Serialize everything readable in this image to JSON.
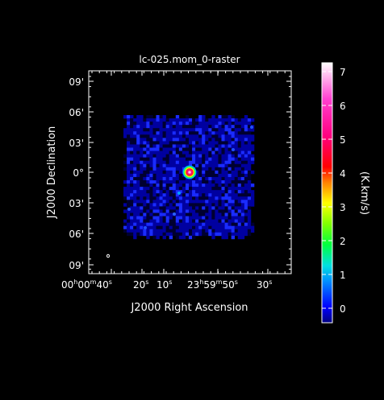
{
  "plot": {
    "title": "lc-025.mom_0-raster",
    "xlabel": "J2000 Right Ascension",
    "ylabel": "J2000 Declination",
    "colorbar_label": "(K.km/s)",
    "background_color": "#000000",
    "frame_color": "#ffffff"
  },
  "axes": {
    "y_ticks": [
      "09'",
      "06'",
      "03'",
      "0°",
      "03'",
      "06'",
      "09'"
    ],
    "x_ticks": [
      {
        "main": "00",
        "sup1": "h",
        "mid": "00",
        "sup2": "m",
        "tail": "40",
        "sup3": "s"
      },
      {
        "main": "20",
        "sup1": "s"
      },
      {
        "main": "10",
        "sup1": "s"
      },
      {
        "main": "23",
        "sup1": "h",
        "mid": "59",
        "sup2": "m",
        "tail": "50",
        "sup3": "s"
      },
      {
        "main": "30",
        "sup1": "s"
      }
    ]
  },
  "colorbar": {
    "ticks": [
      "0",
      "1",
      "2",
      "3",
      "4",
      "5",
      "6",
      "7"
    ],
    "min": -0.4,
    "max": 7.2,
    "stops": [
      "#000080",
      "#0000ff",
      "#0090ff",
      "#00e0e0",
      "#00ff40",
      "#80ff00",
      "#ffff00",
      "#ff8000",
      "#ff0000",
      "#ff0080",
      "#ff40d0",
      "#ffffff"
    ]
  },
  "map": {
    "noise_color_low": "#000030",
    "noise_color_mid": "#0000a0",
    "noise_color_high": "#1a2cff",
    "source_peak": 7.0
  }
}
